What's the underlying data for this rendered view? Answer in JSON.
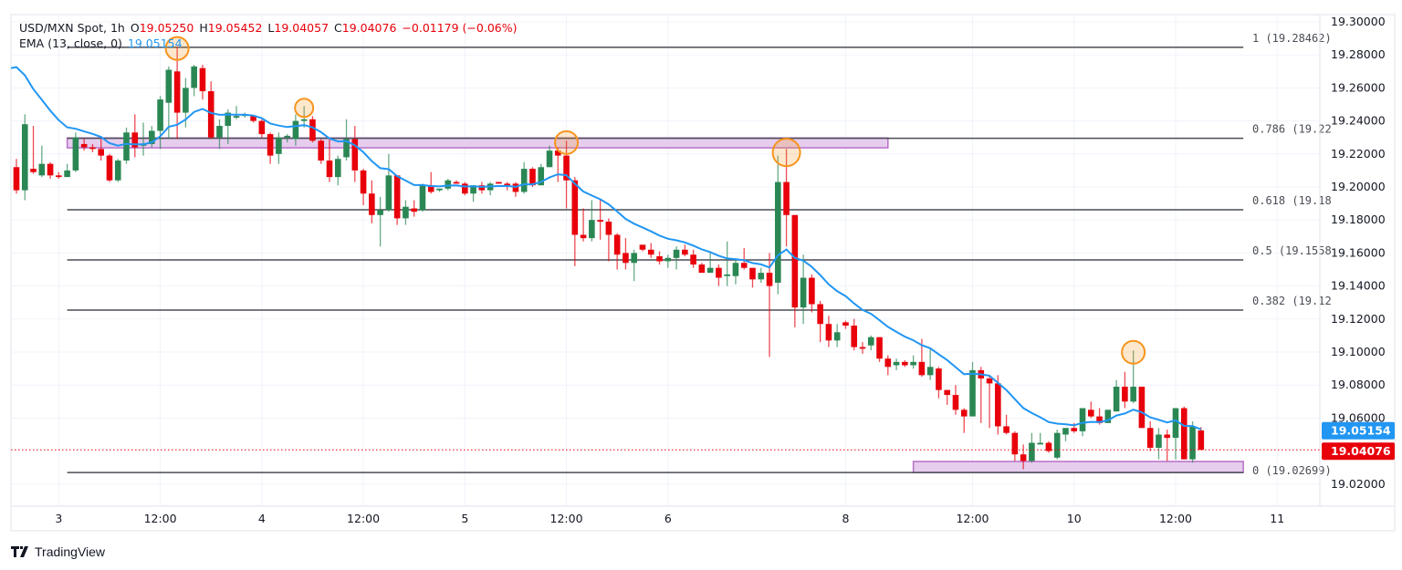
{
  "header": {
    "symbol": "USD/MXN Spot, 1h",
    "open_label": "O",
    "open": "19.05250",
    "high_label": "H",
    "high": "19.05452",
    "low_label": "L",
    "low": "19.04057",
    "close_label": "C",
    "close": "19.04076",
    "change": "−0.01179 (−0.06%)",
    "ema_label": "EMA (13, close, 0)",
    "ema_value": "19.05154"
  },
  "branding": {
    "logo_text": "TradingView"
  },
  "colors": {
    "up": "#2a8754",
    "down": "#e8000b",
    "ema": "#2196f3",
    "fib": "#4a4d55",
    "zone_fill": "#e6cdee",
    "zone_border": "#b86fc7",
    "marker": "#f7941d",
    "last_price": "#e8000b",
    "ema_badge": "#2196f3"
  },
  "chart_data": {
    "type": "candlestick",
    "title": "",
    "interval": "1h",
    "ylim": [
      19.0,
      19.3
    ],
    "grid": true,
    "y_ticks": [
      "19.30000",
      "19.28000",
      "19.26000",
      "19.24000",
      "19.22000",
      "19.20000",
      "19.18000",
      "19.16000",
      "19.14000",
      "19.12000",
      "19.10000",
      "19.08000",
      "19.06000",
      "19.02000"
    ],
    "x_ticks": [
      {
        "label": "3",
        "bar": 5
      },
      {
        "label": "12:00",
        "bar": 17
      },
      {
        "label": "4",
        "bar": 29
      },
      {
        "label": "12:00",
        "bar": 41
      },
      {
        "label": "5",
        "bar": 53
      },
      {
        "label": "12:00",
        "bar": 65
      },
      {
        "label": "6",
        "bar": 77
      },
      {
        "label": "8",
        "bar": 98
      },
      {
        "label": "12:00",
        "bar": 113
      },
      {
        "label": "10",
        "bar": 125
      },
      {
        "label": "12:00",
        "bar": 137
      },
      {
        "label": "11",
        "bar": 149
      }
    ],
    "ohlc": [
      [
        19.212,
        19.217,
        19.196,
        19.198
      ],
      [
        19.198,
        19.244,
        19.192,
        19.238
      ],
      [
        19.211,
        19.237,
        19.208,
        19.209
      ],
      [
        19.207,
        19.225,
        19.206,
        19.214
      ],
      [
        19.214,
        19.215,
        19.205,
        19.207
      ],
      [
        19.207,
        19.209,
        19.205,
        19.206
      ],
      [
        19.206,
        19.214,
        19.206,
        19.21
      ],
      [
        19.21,
        19.233,
        19.209,
        19.23
      ],
      [
        19.226,
        19.229,
        19.222,
        19.224
      ],
      [
        19.224,
        19.226,
        19.221,
        19.223
      ],
      [
        19.223,
        19.229,
        19.216,
        19.219
      ],
      [
        19.219,
        19.22,
        19.203,
        19.204
      ],
      [
        19.204,
        19.217,
        19.203,
        19.216
      ],
      [
        19.216,
        19.236,
        19.214,
        19.233
      ],
      [
        19.233,
        19.244,
        19.218,
        19.224
      ],
      [
        19.225,
        19.239,
        19.219,
        19.226
      ],
      [
        19.226,
        19.237,
        19.224,
        19.234
      ],
      [
        19.234,
        19.255,
        19.223,
        19.253
      ],
      [
        19.251,
        19.273,
        19.229,
        19.271
      ],
      [
        19.27,
        19.285,
        19.229,
        19.245
      ],
      [
        19.245,
        19.266,
        19.236,
        19.26
      ],
      [
        19.26,
        19.274,
        19.255,
        19.273
      ],
      [
        19.272,
        19.274,
        19.253,
        19.258
      ],
      [
        19.258,
        19.264,
        19.229,
        19.23
      ],
      [
        19.23,
        19.241,
        19.223,
        19.237
      ],
      [
        19.237,
        19.247,
        19.226,
        19.245
      ],
      [
        19.242,
        19.249,
        19.241,
        19.243
      ],
      [
        19.243,
        19.245,
        19.242,
        19.244
      ],
      [
        19.243,
        19.243,
        19.239,
        19.24
      ],
      [
        19.24,
        19.241,
        19.23,
        19.232
      ],
      [
        19.232,
        19.233,
        19.214,
        19.219
      ],
      [
        19.22,
        19.233,
        19.214,
        19.23
      ],
      [
        19.23,
        19.232,
        19.227,
        19.231
      ],
      [
        19.229,
        19.244,
        19.225,
        19.24
      ],
      [
        19.24,
        19.249,
        19.236,
        19.241
      ],
      [
        19.241,
        19.243,
        19.227,
        19.228
      ],
      [
        19.228,
        19.229,
        19.214,
        19.216
      ],
      [
        19.216,
        19.229,
        19.203,
        19.206
      ],
      [
        19.206,
        19.219,
        19.201,
        19.217
      ],
      [
        19.218,
        19.241,
        19.216,
        19.229
      ],
      [
        19.229,
        19.237,
        19.203,
        19.21
      ],
      [
        19.21,
        19.211,
        19.189,
        19.196
      ],
      [
        19.196,
        19.204,
        19.178,
        19.183
      ],
      [
        19.183,
        19.194,
        19.164,
        19.186
      ],
      [
        19.186,
        19.22,
        19.185,
        19.207
      ],
      [
        19.207,
        19.207,
        19.177,
        19.181
      ],
      [
        19.181,
        19.192,
        19.177,
        19.188
      ],
      [
        19.187,
        19.192,
        19.182,
        19.185
      ],
      [
        19.186,
        19.202,
        19.185,
        19.201
      ],
      [
        19.201,
        19.209,
        19.196,
        19.197
      ],
      [
        19.198,
        19.199,
        19.197,
        19.199
      ],
      [
        19.199,
        19.205,
        19.198,
        19.204
      ],
      [
        19.203,
        19.204,
        19.202,
        19.202
      ],
      [
        19.202,
        19.203,
        19.195,
        19.196
      ],
      [
        19.196,
        19.201,
        19.191,
        19.201
      ],
      [
        19.201,
        19.203,
        19.196,
        19.198
      ],
      [
        19.198,
        19.203,
        19.195,
        19.202
      ],
      [
        19.203,
        19.203,
        19.202,
        19.202
      ],
      [
        19.202,
        19.203,
        19.198,
        19.201
      ],
      [
        19.202,
        19.203,
        19.194,
        19.197
      ],
      [
        19.197,
        19.215,
        19.196,
        19.211
      ],
      [
        19.211,
        19.212,
        19.2,
        19.201
      ],
      [
        19.201,
        19.214,
        19.201,
        19.212
      ],
      [
        19.212,
        19.225,
        19.212,
        19.222
      ],
      [
        19.222,
        19.224,
        19.203,
        19.219
      ],
      [
        19.219,
        19.228,
        19.187,
        19.204
      ],
      [
        19.204,
        19.206,
        19.152,
        19.171
      ],
      [
        19.171,
        19.187,
        19.167,
        19.169
      ],
      [
        19.169,
        19.192,
        19.167,
        19.18
      ],
      [
        19.18,
        19.193,
        19.168,
        19.179
      ],
      [
        19.179,
        19.181,
        19.155,
        19.171
      ],
      [
        19.171,
        19.172,
        19.15,
        19.159
      ],
      [
        19.16,
        19.169,
        19.15,
        19.154
      ],
      [
        19.154,
        19.162,
        19.143,
        19.16
      ],
      [
        19.165,
        19.165,
        19.161,
        19.162
      ],
      [
        19.162,
        19.166,
        19.157,
        19.159
      ],
      [
        19.158,
        19.161,
        19.153,
        19.155
      ],
      [
        19.155,
        19.159,
        19.151,
        19.157
      ],
      [
        19.157,
        19.164,
        19.15,
        19.162
      ],
      [
        19.162,
        19.165,
        19.158,
        19.159
      ],
      [
        19.159,
        19.162,
        19.151,
        19.153
      ],
      [
        19.153,
        19.154,
        19.148,
        19.148
      ],
      [
        19.148,
        19.161,
        19.148,
        19.151
      ],
      [
        19.151,
        19.153,
        19.14,
        19.145
      ],
      [
        19.146,
        19.167,
        19.14,
        19.147
      ],
      [
        19.146,
        19.156,
        19.141,
        19.154
      ],
      [
        19.154,
        19.163,
        19.15,
        19.151
      ],
      [
        19.151,
        19.151,
        19.139,
        19.144
      ],
      [
        19.144,
        19.151,
        19.142,
        19.148
      ],
      [
        19.148,
        19.16,
        19.097,
        19.14
      ],
      [
        19.142,
        19.219,
        19.135,
        19.203
      ],
      [
        19.203,
        19.223,
        19.164,
        19.183
      ],
      [
        19.183,
        19.183,
        19.115,
        19.127
      ],
      [
        19.127,
        19.159,
        19.117,
        19.145
      ],
      [
        19.145,
        19.147,
        19.124,
        19.129
      ],
      [
        19.129,
        19.131,
        19.106,
        19.117
      ],
      [
        19.117,
        19.122,
        19.103,
        19.107
      ],
      [
        19.107,
        19.117,
        19.103,
        19.112
      ],
      [
        19.118,
        19.119,
        19.114,
        19.116
      ],
      [
        19.116,
        19.12,
        19.101,
        19.103
      ],
      [
        19.103,
        19.106,
        19.099,
        19.102
      ],
      [
        19.104,
        19.11,
        19.101,
        19.109
      ],
      [
        19.109,
        19.109,
        19.094,
        19.096
      ],
      [
        19.096,
        19.098,
        19.086,
        19.091
      ],
      [
        19.092,
        19.096,
        19.089,
        19.094
      ],
      [
        19.094,
        19.095,
        19.091,
        19.092
      ],
      [
        19.092,
        19.098,
        19.09,
        19.094
      ],
      [
        19.094,
        19.108,
        19.085,
        19.086
      ],
      [
        19.086,
        19.102,
        19.083,
        19.091
      ],
      [
        19.09,
        19.091,
        19.072,
        19.077
      ],
      [
        19.077,
        19.077,
        19.068,
        19.074
      ],
      [
        19.074,
        19.08,
        19.062,
        19.065
      ],
      [
        19.065,
        19.066,
        19.051,
        19.061
      ],
      [
        19.061,
        19.094,
        19.061,
        19.089
      ],
      [
        19.089,
        19.091,
        19.057,
        19.084
      ],
      [
        19.084,
        19.086,
        19.054,
        19.081
      ],
      [
        19.081,
        19.086,
        19.05,
        19.055
      ],
      [
        19.055,
        19.062,
        19.05,
        19.051
      ],
      [
        19.051,
        19.052,
        19.034,
        19.038
      ],
      [
        19.038,
        19.044,
        19.029,
        19.034
      ],
      [
        19.034,
        19.051,
        19.033,
        19.045
      ],
      [
        19.044,
        19.051,
        19.044,
        19.045
      ],
      [
        19.045,
        19.046,
        19.039,
        19.04
      ],
      [
        19.036,
        19.053,
        19.035,
        19.051
      ],
      [
        19.05,
        19.054,
        19.046,
        19.054
      ],
      [
        19.054,
        19.057,
        19.051,
        19.052
      ],
      [
        19.052,
        19.066,
        19.049,
        19.066
      ],
      [
        19.065,
        19.07,
        19.06,
        19.061
      ],
      [
        19.061,
        19.066,
        19.056,
        19.057
      ],
      [
        19.057,
        19.065,
        19.057,
        19.065
      ],
      [
        19.064,
        19.083,
        19.064,
        19.079
      ],
      [
        19.079,
        19.088,
        19.066,
        19.07
      ],
      [
        19.07,
        19.101,
        19.069,
        19.079
      ],
      [
        19.079,
        19.079,
        19.054,
        19.054
      ],
      [
        19.054,
        19.058,
        19.04,
        19.042
      ],
      [
        19.042,
        19.054,
        19.035,
        19.05
      ],
      [
        19.05,
        19.053,
        19.034,
        19.048
      ],
      [
        19.048,
        19.066,
        19.035,
        19.066
      ],
      [
        19.066,
        19.067,
        19.035,
        19.035
      ],
      [
        19.035,
        19.058,
        19.033,
        19.055
      ],
      [
        19.0525,
        19.05452,
        19.04057,
        19.04076
      ]
    ],
    "ema": {
      "period": 13,
      "source": "close",
      "last": 19.05154
    },
    "last_price": "19.04076",
    "ema_badge": "19.05154",
    "fibonacci": {
      "start_bar": 6,
      "end_bar": 145,
      "levels": [
        {
          "ratio": 1,
          "price": 19.28462,
          "label": "1 (19.28462)"
        },
        {
          "ratio": 0.786,
          "price": 19.22949,
          "label": "0.786 (19.22"
        },
        {
          "ratio": 0.618,
          "price": 19.18621,
          "label": "0.618 (19.18"
        },
        {
          "ratio": 0.5,
          "price": 19.15581,
          "label": "0.5 (19.1558"
        },
        {
          "ratio": 0.382,
          "price": 19.1254,
          "label": "0.382 (19.12"
        },
        {
          "ratio": 0,
          "price": 19.02699,
          "label": "0 (19.02699)"
        }
      ]
    },
    "zones": [
      {
        "start_bar": 6,
        "end_bar": 103,
        "top": 19.2297,
        "bottom": 19.2237
      },
      {
        "start_bar": 106,
        "end_bar": 145,
        "top": 19.0337,
        "bottom": 19.027
      }
    ],
    "markers": [
      {
        "bar": 19,
        "price": 19.285,
        "size": "medium"
      },
      {
        "bar": 34,
        "price": 19.249,
        "size": "small"
      },
      {
        "bar": 65,
        "price": 19.228,
        "size": "medium"
      },
      {
        "bar": 91,
        "price": 19.222,
        "size": "large"
      },
      {
        "bar": 132,
        "price": 19.101,
        "size": "medium"
      }
    ]
  }
}
